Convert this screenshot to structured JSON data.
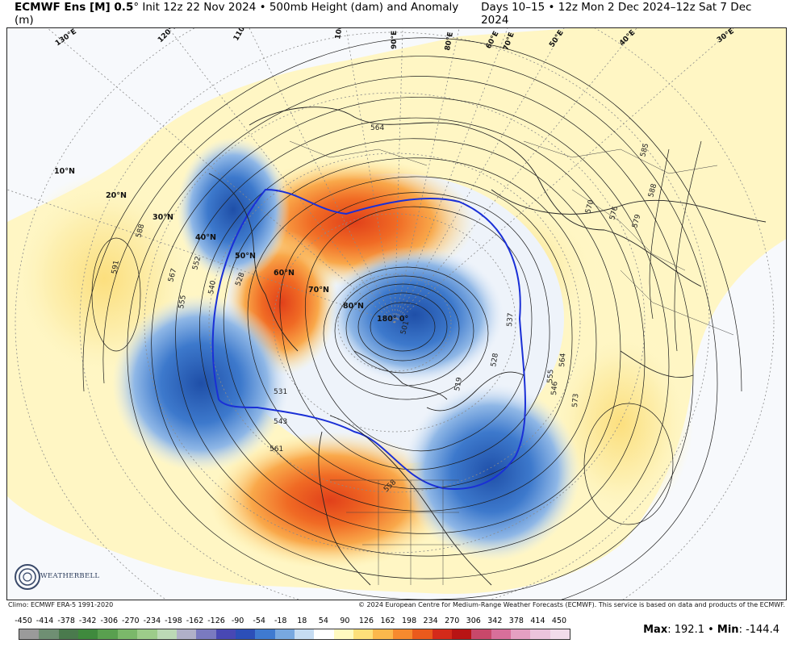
{
  "header": {
    "model": "ECMWF Ens [M] 0.5",
    "degree_symbol": "°",
    "description": "Init 12z 22 Nov 2024 • 500mb Height (dam) and Anomaly (m)",
    "valid": "Days 10–15 • 12z Mon 2 Dec 2024–12z Sat 7 Dec 2024"
  },
  "credits": {
    "climo": "Climo: ECMWF ERA-5 1991-2020",
    "copyright": "© 2024 European Centre for Medium-Range Weather Forecasts (ECMWF). This service is based on data and products of the ECMWF."
  },
  "logo": {
    "text": "WEATHERBELL"
  },
  "map": {
    "latitude_labels": [
      "10°N",
      "20°N",
      "30°N",
      "40°N",
      "50°N",
      "60°N",
      "70°N",
      "80°N"
    ],
    "longitude_labels": [
      "130°E",
      "120°E",
      "110°E",
      "100°E",
      "90°E",
      "80°E",
      "70°E",
      "60°E",
      "50°E",
      "40°E",
      "30°E"
    ],
    "pole_label": "180° 0°",
    "contour_labels": [
      "564",
      "588",
      "591",
      "567",
      "552",
      "528",
      "555",
      "540",
      "531",
      "543",
      "561",
      "501",
      "519",
      "528",
      "537",
      "546",
      "555",
      "564",
      "570",
      "576",
      "579",
      "585",
      "588",
      "558",
      "573"
    ],
    "thick_contour_value": "546"
  },
  "colorbar": {
    "ticks": [
      "-450",
      "-414",
      "-378",
      "-342",
      "-306",
      "-270",
      "-234",
      "-198",
      "-162",
      "-126",
      "-90",
      "-54",
      "-18",
      "18",
      "54",
      "90",
      "126",
      "162",
      "198",
      "234",
      "270",
      "306",
      "342",
      "378",
      "414",
      "450"
    ],
    "colors": [
      "#9a9a9a",
      "#6f8f73",
      "#4a7a4d",
      "#3f8a3d",
      "#59a04f",
      "#7bb86a",
      "#9dcc8a",
      "#bcd9b6",
      "#b0b0c8",
      "#7a7ac0",
      "#4848b4",
      "#2c4fb8",
      "#3f7ad0",
      "#78a8e0",
      "#c6dcf2",
      "#ffffff",
      "#fffac0",
      "#fde07a",
      "#fbb84c",
      "#f68a2e",
      "#ea5a1c",
      "#d42a1a",
      "#b81414",
      "#c8486a",
      "#d86f9a",
      "#e4a0c2",
      "#ecc4dc",
      "#f2dcea"
    ]
  },
  "stats": {
    "max_label": "Max",
    "max_value": "192.1",
    "min_label": "Min",
    "min_value": "-144.4"
  }
}
